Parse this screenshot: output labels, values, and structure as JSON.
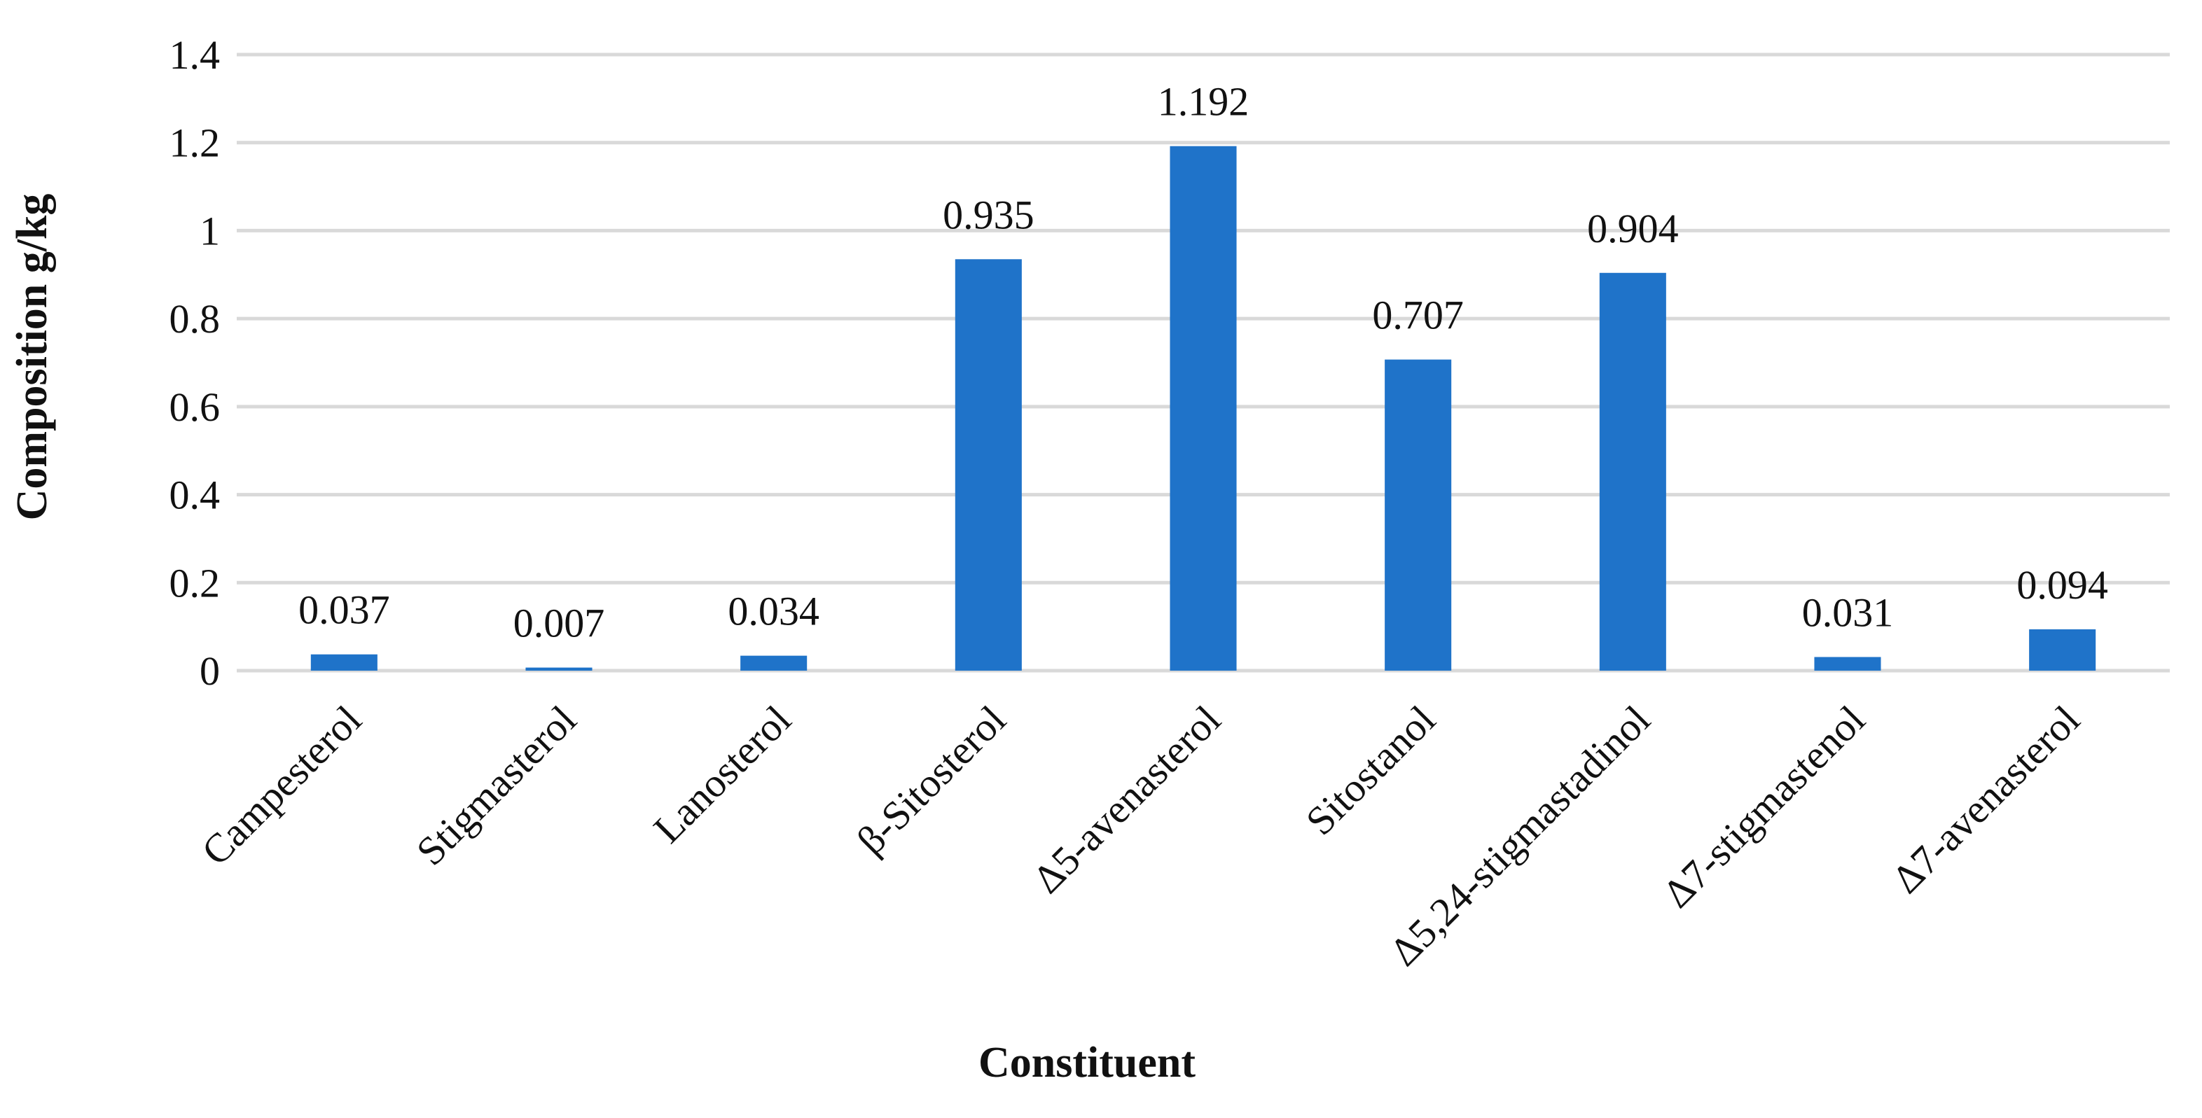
{
  "chart_data": {
    "type": "bar",
    "title": "",
    "xlabel": "Constituent",
    "ylabel": "Composition g/kg",
    "categories": [
      "Campesterol",
      "Stigmasterol",
      "Lanosterol",
      "β-Sitosterol",
      "Δ5-avenasterol",
      "Sitostanol",
      "Δ5,24-stigmastadinol",
      "Δ7-stigmastenol",
      "Δ7-avenasterol"
    ],
    "series": [
      {
        "values": [
          0.037,
          0.007,
          0.034,
          0.935,
          1.192,
          0.707,
          0.904,
          0.031,
          0.094
        ]
      }
    ],
    "data_labels": [
      "0.037",
      "0.007",
      "0.034",
      "0.935",
      "1.192",
      "0.707",
      "0.904",
      "0.031",
      "0.094"
    ],
    "ylim": [
      0,
      1.4
    ],
    "yticks": [
      "0",
      "0.2",
      "0.4",
      "0.6",
      "0.8",
      "1",
      "1.2",
      "1.4"
    ],
    "grid": true,
    "legend": "none",
    "bar_color": "#1f73c9"
  }
}
